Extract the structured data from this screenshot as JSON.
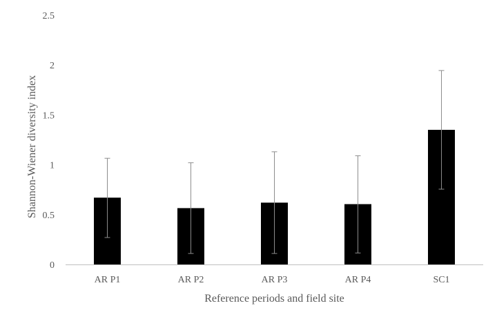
{
  "chart_data": {
    "type": "bar",
    "title": "",
    "xlabel": "Reference periods and field site",
    "ylabel": "Shannon-Wiener diversity index",
    "categories": [
      "AR P1",
      "AR P2",
      "AR P3",
      "AR P4",
      "SC1"
    ],
    "values": [
      0.67,
      0.565,
      0.62,
      0.605,
      1.35
    ],
    "error_low": [
      0.27,
      0.11,
      0.11,
      0.115,
      0.755
    ],
    "error_high": [
      1.065,
      1.02,
      1.13,
      1.09,
      1.945
    ],
    "ylim": [
      0,
      2.5
    ],
    "yticks": [
      0,
      0.5,
      1,
      1.5,
      2,
      2.5
    ],
    "ytick_labels": [
      "0",
      "0.5",
      "1",
      "1.5",
      "2",
      "2.5"
    ],
    "grid": false,
    "legend": "none",
    "colors": {
      "bar": "#000000",
      "error_bar": "#8c8c8c",
      "axis": "#bfbfbf",
      "text": "#595959"
    }
  }
}
